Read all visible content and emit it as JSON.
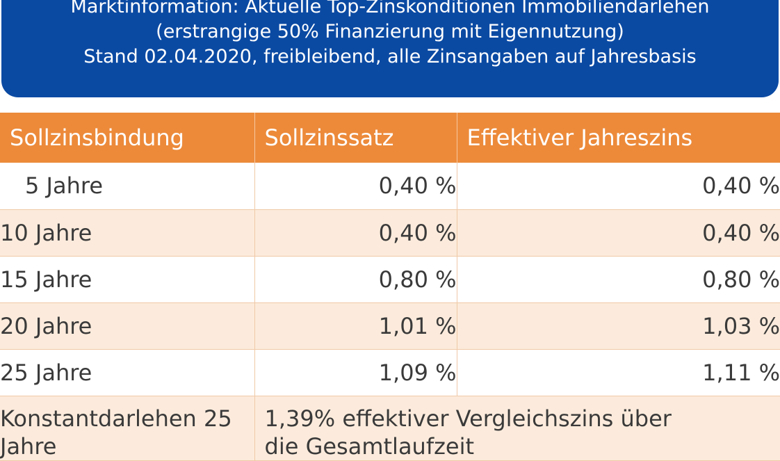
{
  "banner": {
    "line1": "Marktinformation: Aktuelle Top-Zinskonditionen Immobiliendarlehen",
    "line2": "(erstrangige 50% Finanzierung mit Eigennutzung)",
    "line3": "Stand 02.04.2020, freibleibend, alle Zinsangaben auf Jahresbasis"
  },
  "colors": {
    "banner_blue": "#0b4aa3",
    "header_orange": "#ec8a3a",
    "row_tint": "#fcebdc"
  },
  "table": {
    "headers": [
      "Sollzinsbindung",
      "Sollzinssatz",
      "Effektiver Jahreszins"
    ],
    "rows": [
      {
        "term": "5 Jahre",
        "soll": "0,40 %",
        "eff": "0,40 %"
      },
      {
        "term": "10 Jahre",
        "soll": "0,40 %",
        "eff": "0,40 %"
      },
      {
        "term": "15 Jahre",
        "soll": "0,80 %",
        "eff": "0,80 %"
      },
      {
        "term": "20 Jahre",
        "soll": "1,01 %",
        "eff": "1,03 %"
      },
      {
        "term": "25 Jahre",
        "soll": "1,09 %",
        "eff": "1,11 %"
      }
    ],
    "konstant": {
      "term": "Konstantdarlehen 25 Jahre",
      "desc": "1,39% effektiver Vergleichszins über die Gesamtlaufzeit"
    }
  }
}
